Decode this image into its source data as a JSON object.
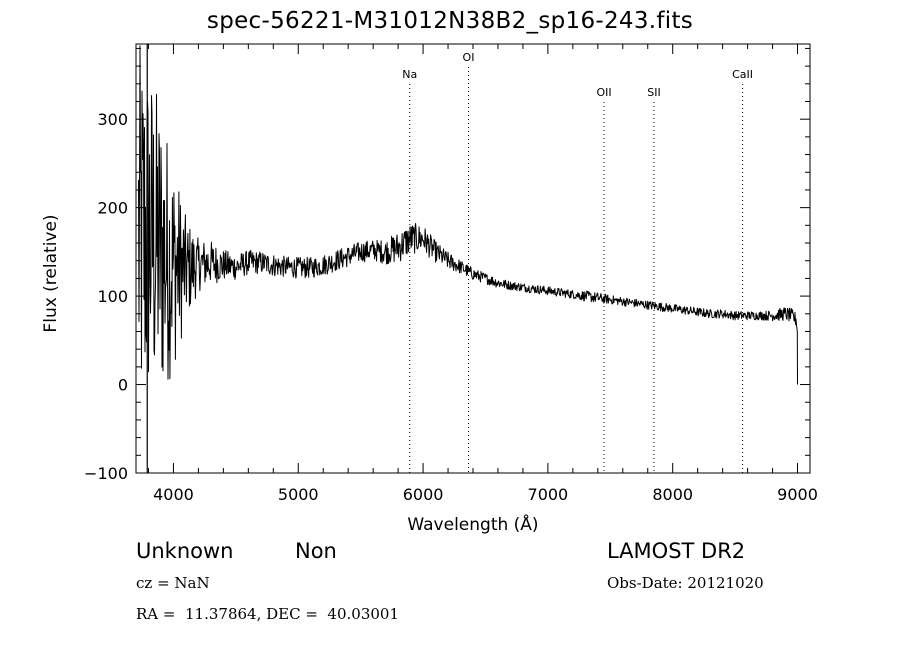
{
  "chart_data": {
    "type": "line",
    "title": "spec-56221-M31012N38B2_sp16-243.fits",
    "xlabel": "Wavelength (Å)",
    "ylabel": "Flux (relative)",
    "xlim": [
      3700,
      9100
    ],
    "ylim": [
      -100,
      385
    ],
    "xticks": [
      4000,
      5000,
      6000,
      7000,
      8000,
      9000
    ],
    "yticks": [
      -100,
      0,
      100,
      200,
      300
    ],
    "grid": false,
    "lines": [
      {
        "label": "Na",
        "x": 5893
      },
      {
        "label": "OI",
        "x": 6364
      },
      {
        "label": "OII",
        "x": 7450
      },
      {
        "label": "SII",
        "x": 7850
      },
      {
        "label": "CaII",
        "x": 8560
      }
    ],
    "series": [
      {
        "x": [
          3720,
          3800,
          3900,
          4000,
          4100,
          4200,
          4300,
          4400,
          4500,
          4600,
          4700,
          4800,
          4900,
          5000,
          5100,
          5200,
          5300,
          5400,
          5500,
          5600,
          5700,
          5800,
          5900,
          6000,
          6100,
          6200,
          6300,
          6400,
          6500,
          6600,
          6700,
          6800,
          6900,
          7000,
          7100,
          7200,
          7300,
          7400,
          7500,
          7600,
          7700,
          7800,
          7900,
          8000,
          8100,
          8200,
          8300,
          8400,
          8500,
          8600,
          8700,
          8800,
          8900,
          8950,
          9000
        ],
        "y": [
          160,
          170,
          150,
          135,
          130,
          135,
          138,
          135,
          133,
          138,
          138,
          135,
          133,
          132,
          132,
          135,
          140,
          145,
          150,
          152,
          150,
          155,
          165,
          165,
          150,
          140,
          133,
          125,
          120,
          115,
          112,
          110,
          108,
          106,
          104,
          102,
          100,
          98,
          96,
          94,
          92,
          90,
          88,
          86,
          84,
          82,
          80,
          80,
          78,
          78,
          78,
          78,
          80,
          78,
          72
        ],
        "noise": [
          230,
          200,
          170,
          120,
          60,
          30,
          25,
          18,
          15,
          14,
          13,
          13,
          12,
          12,
          12,
          12,
          12,
          12,
          12,
          12,
          14,
          18,
          18,
          16,
          12,
          10,
          8,
          7,
          6,
          6,
          5,
          5,
          5,
          5,
          5,
          5,
          6,
          6,
          5,
          5,
          5,
          5,
          5,
          5,
          5,
          5,
          5,
          5,
          5,
          5,
          5,
          6,
          8,
          8,
          8
        ]
      }
    ]
  },
  "info": {
    "object_class": "Unknown",
    "subclass": "Non",
    "cz": "cz = NaN",
    "radec": "RA =  11.37864, DEC =  40.03001",
    "survey": "LAMOST DR2",
    "obs_date": "Obs-Date: 20121020"
  }
}
